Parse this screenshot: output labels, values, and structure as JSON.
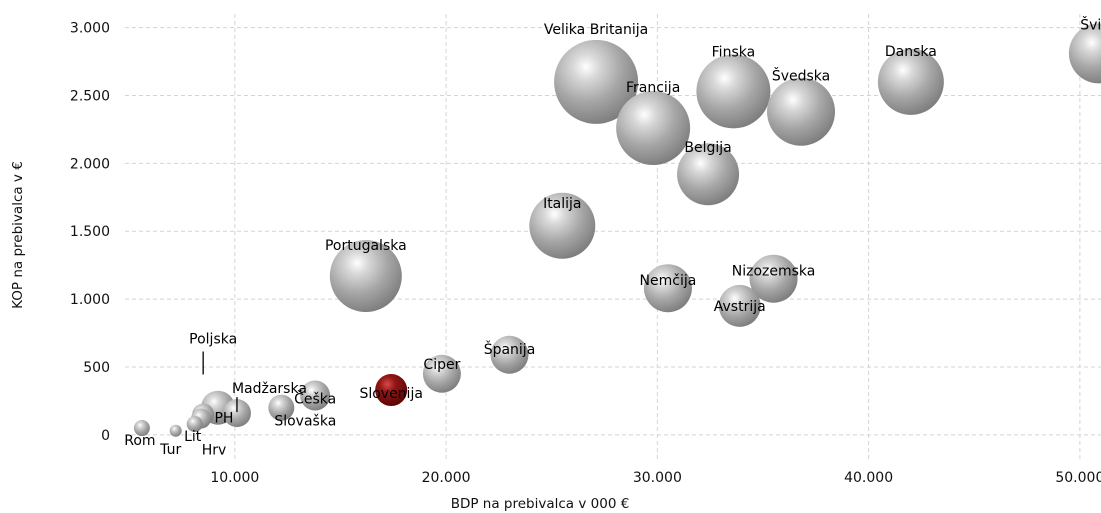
{
  "chart_data": {
    "type": "scatter",
    "variant": "bubble",
    "xlabel": "BDP na prebivalca v 000 €",
    "ylabel": "KOP na prebivalca v €",
    "xlim": [
      4800,
      51000
    ],
    "ylim": [
      -200,
      3100
    ],
    "x_ticks": [
      10000,
      20000,
      30000,
      40000,
      50000
    ],
    "x_tick_labels": [
      "10.000",
      "20.000",
      "30.000",
      "40.000",
      "50.000"
    ],
    "y_ticks": [
      0,
      500,
      1000,
      1500,
      2000,
      2500,
      3000
    ],
    "y_tick_labels": [
      "0",
      "500",
      "1.000",
      "1.500",
      "2.000",
      "2.500",
      "3.000"
    ],
    "grid": true,
    "colors": {
      "bubble": "#9a9a9a",
      "highlight": "#7a0d0d",
      "grid": "#d4d4d4"
    },
    "bubbles": [
      {
        "label": "Velika Britanija",
        "x": 27100,
        "y": 2600,
        "size": 42
      },
      {
        "label": "Francija",
        "x": 29800,
        "y": 2260,
        "size": 37
      },
      {
        "label": "Finska",
        "x": 33600,
        "y": 2530,
        "size": 37
      },
      {
        "label": "Švedska",
        "x": 36800,
        "y": 2380,
        "size": 34
      },
      {
        "label": "Danska",
        "x": 42000,
        "y": 2600,
        "size": 33
      },
      {
        "label": "Švica",
        "x": 50900,
        "y": 2810,
        "size": 30
      },
      {
        "label": "Belgija",
        "x": 32400,
        "y": 1920,
        "size": 31
      },
      {
        "label": "Italija",
        "x": 25500,
        "y": 1540,
        "size": 33
      },
      {
        "label": "Portugalska",
        "x": 16200,
        "y": 1170,
        "size": 36
      },
      {
        "label": "Nemčija",
        "x": 30500,
        "y": 1080,
        "size": 24
      },
      {
        "label": "Nizozemska",
        "x": 35500,
        "y": 1150,
        "size": 24
      },
      {
        "label": "Avstrija",
        "x": 33900,
        "y": 950,
        "size": 21
      },
      {
        "label": "Španija",
        "x": 23000,
        "y": 590,
        "size": 19
      },
      {
        "label": "Ciper",
        "x": 19800,
        "y": 450,
        "size": 19
      },
      {
        "label": "Slovenija",
        "x": 17400,
        "y": 330,
        "size": 16,
        "highlight": true
      },
      {
        "label": "Češka",
        "x": 13800,
        "y": 290,
        "size": 15
      },
      {
        "label": "Slovaška",
        "x": 12200,
        "y": 200,
        "size": 13
      },
      {
        "label": "Madžarska",
        "x": 10100,
        "y": 160,
        "size": 14
      },
      {
        "label": "PH",
        "x": 9200,
        "y": 200,
        "size": 17
      },
      {
        "label": "Poljska",
        "x": 8500,
        "y": 150,
        "size": 11
      },
      {
        "label": "Hrv",
        "x": 8400,
        "y": 120,
        "size": 10
      },
      {
        "label": "Lit",
        "x": 8100,
        "y": 80,
        "size": 8
      },
      {
        "label": "Tur",
        "x": 7200,
        "y": 30,
        "size": 6
      },
      {
        "label": "Rom",
        "x": 5600,
        "y": 50,
        "size": 8
      }
    ]
  }
}
